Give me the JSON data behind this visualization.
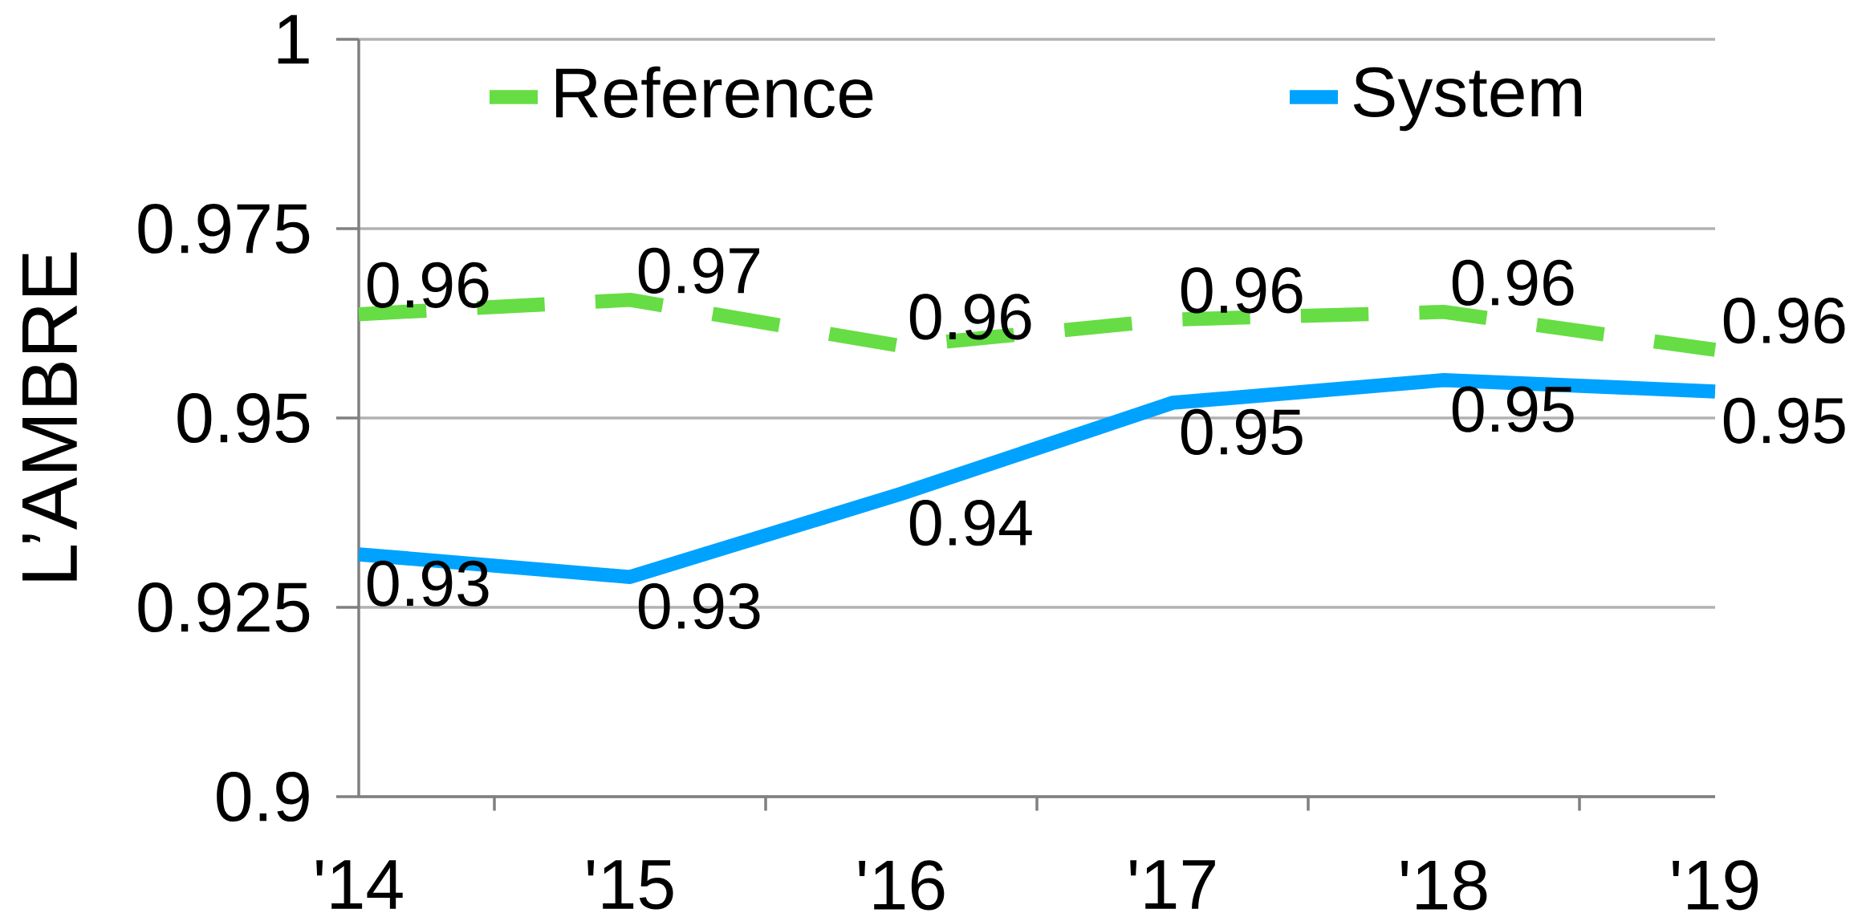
{
  "chart_data": {
    "type": "line",
    "ylabel": "L’AMBRE",
    "categories": [
      "'14",
      "'15",
      "'16",
      "'17",
      "'18",
      "'19"
    ],
    "series": [
      {
        "name": "Reference",
        "color": "#66dd44",
        "line_style": "dashed",
        "values": [
          0.9637,
          0.9656,
          0.9595,
          0.963,
          0.964,
          0.959
        ],
        "value_labels": [
          "0.96",
          "0.97",
          "0.96",
          "0.96",
          "0.96",
          "0.96"
        ]
      },
      {
        "name": "System",
        "color": "#00a2ff",
        "line_style": "solid",
        "values": [
          0.932,
          0.929,
          0.94,
          0.952,
          0.955,
          0.9535
        ],
        "value_labels": [
          "0.93",
          "0.93",
          "0.94",
          "0.95",
          "0.95",
          "0.95"
        ]
      }
    ],
    "ylim": [
      0.9,
      1
    ],
    "yticks": [
      0.9,
      0.925,
      0.95,
      0.975,
      1
    ],
    "grid": "y",
    "legend": "top",
    "marker": "none"
  }
}
